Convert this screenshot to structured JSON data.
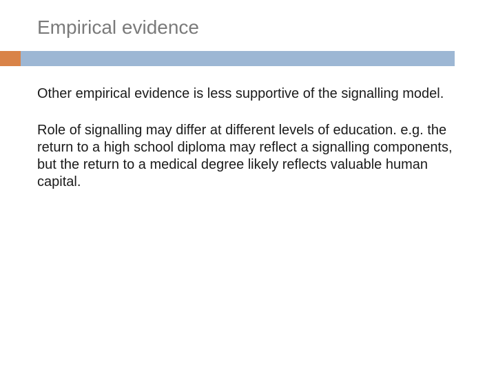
{
  "slide": {
    "title": "Empirical evidence",
    "paragraph1": "Other empirical evidence is less supportive of the signalling model.",
    "paragraph2": "Role of signalling may differ at different levels of education. e.g. the return to a high school diploma may reflect a signalling components,  but the return to a medical degree likely reflects valuable human capital."
  },
  "style": {
    "title_color": "#7a7a7a",
    "title_fontsize": 28,
    "body_color": "#1a1a1a",
    "body_fontsize": 20,
    "accent_color": "#d98348",
    "bar_color": "#9db7d4",
    "background_color": "#ffffff"
  }
}
